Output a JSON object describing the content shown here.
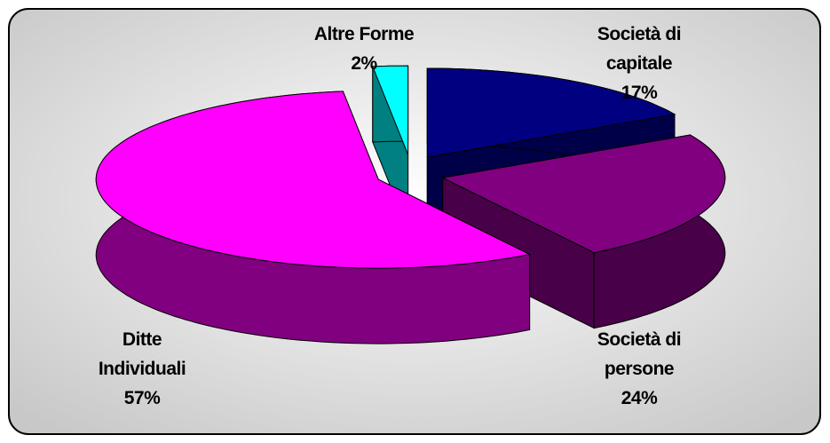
{
  "chart_data": {
    "type": "pie3d",
    "categories": [
      "Società di capitale",
      "Società di persone",
      "Ditte Individuali",
      "Altre Forme"
    ],
    "values": [
      17,
      24,
      57,
      2
    ],
    "value_labels": [
      "17%",
      "24%",
      "57%",
      "2%"
    ],
    "colors": [
      "#000080",
      "#800080",
      "#ff00ff",
      "#00ffff"
    ],
    "side_colors": [
      "#000048",
      "#480048",
      "#800080",
      "#008080"
    ]
  }
}
